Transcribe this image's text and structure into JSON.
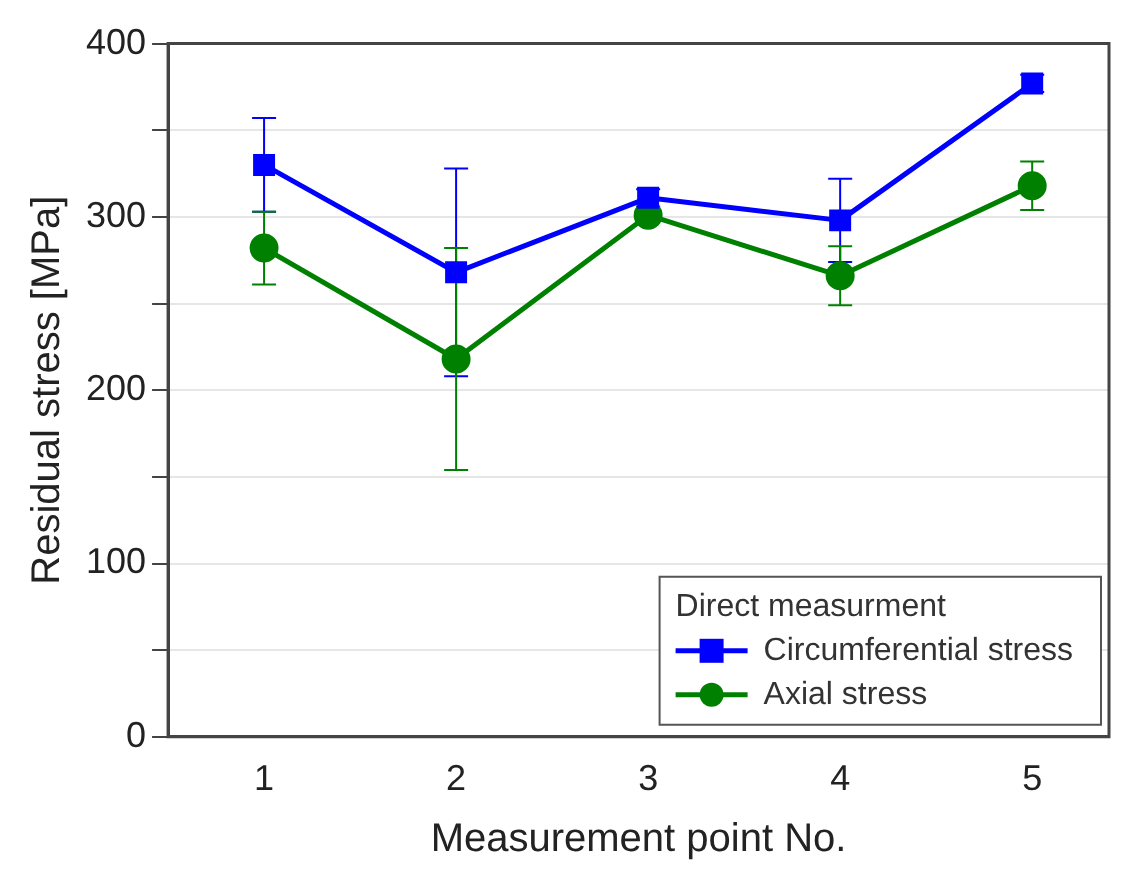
{
  "chart_data": {
    "type": "line",
    "xlabel": "Measurement point No.",
    "ylabel": "Residual stress [MPa]",
    "legend_title": "Direct measurment",
    "x": [
      1,
      2,
      3,
      4,
      5
    ],
    "series": [
      {
        "name": "Circumferential stress",
        "color": "#0000ff",
        "marker": "square",
        "values": [
          330,
          268,
          311,
          298,
          377
        ],
        "errors": [
          27,
          60,
          5,
          24,
          5
        ]
      },
      {
        "name": "Axial stress",
        "color": "#008000",
        "marker": "circle",
        "values": [
          282,
          218,
          301,
          266,
          318
        ],
        "errors": [
          21,
          64,
          3,
          17,
          14
        ]
      }
    ],
    "xlim": [
      0.5,
      5.4
    ],
    "xticks": [
      1,
      2,
      3,
      4,
      5
    ],
    "ylim": [
      0,
      400
    ],
    "yticks": [
      0,
      {
        "value": 50,
        "label": null
      },
      100,
      {
        "value": 150,
        "label": null
      },
      200,
      {
        "value": 250,
        "label": null
      },
      300,
      {
        "value": 350,
        "label": null
      },
      400
    ],
    "grid": "y",
    "legend": "bottom right",
    "line_style": "solid"
  }
}
